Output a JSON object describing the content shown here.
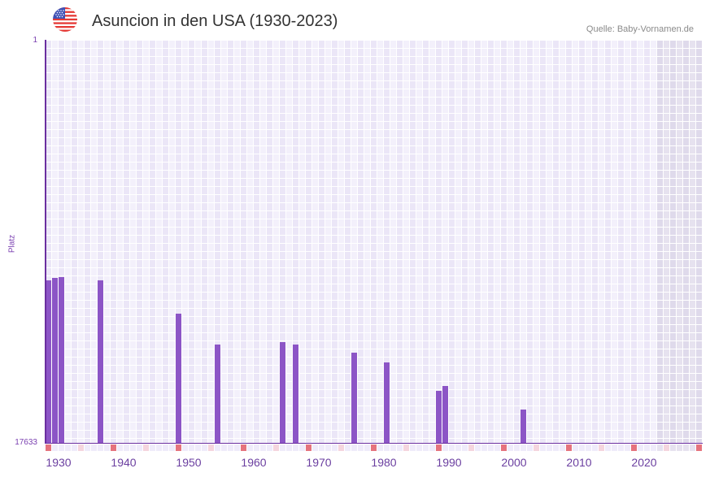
{
  "header": {
    "flag_icon": "us-flag-icon",
    "title": "Asuncion in den USA (1930-2023)",
    "source": "Quelle: Baby-Vornamen.de"
  },
  "axes": {
    "y_label": "Platz",
    "y_tick_top": "1",
    "y_tick_bottom": "17633"
  },
  "colors": {
    "bar": "#8c55c6",
    "axis": "#6b2fa0",
    "decade_marker": "#e5737d",
    "half_decade_marker": "#f5d5de",
    "tick_label": "#6b3fa0"
  },
  "chart_data": {
    "type": "bar",
    "title": "Asuncion in den USA (1930-2023)",
    "xlabel": "",
    "ylabel": "Platz",
    "y_inverted": true,
    "ylim": [
      17633,
      1
    ],
    "y_ticks": [
      1,
      17633
    ],
    "x_range": [
      1930,
      2030
    ],
    "x_ticks": [
      1930,
      1940,
      1950,
      1960,
      1970,
      1980,
      1990,
      2000,
      2010,
      2020
    ],
    "shaded_from_year": 2024,
    "grid": true,
    "legend": "none",
    "series": [
      {
        "name": "Platz",
        "points": [
          {
            "year": 1930,
            "rank": 10509
          },
          {
            "year": 1931,
            "rank": 10402
          },
          {
            "year": 1932,
            "rank": 10367
          },
          {
            "year": 1938,
            "rank": 10509
          },
          {
            "year": 1950,
            "rank": 11969
          },
          {
            "year": 1956,
            "rank": 13323
          },
          {
            "year": 1966,
            "rank": 13216
          },
          {
            "year": 1968,
            "rank": 13323
          },
          {
            "year": 1977,
            "rank": 13679
          },
          {
            "year": 1982,
            "rank": 14107
          },
          {
            "year": 1990,
            "rank": 15353
          },
          {
            "year": 1991,
            "rank": 15139
          },
          {
            "year": 2003,
            "rank": 16172
          }
        ]
      }
    ]
  }
}
